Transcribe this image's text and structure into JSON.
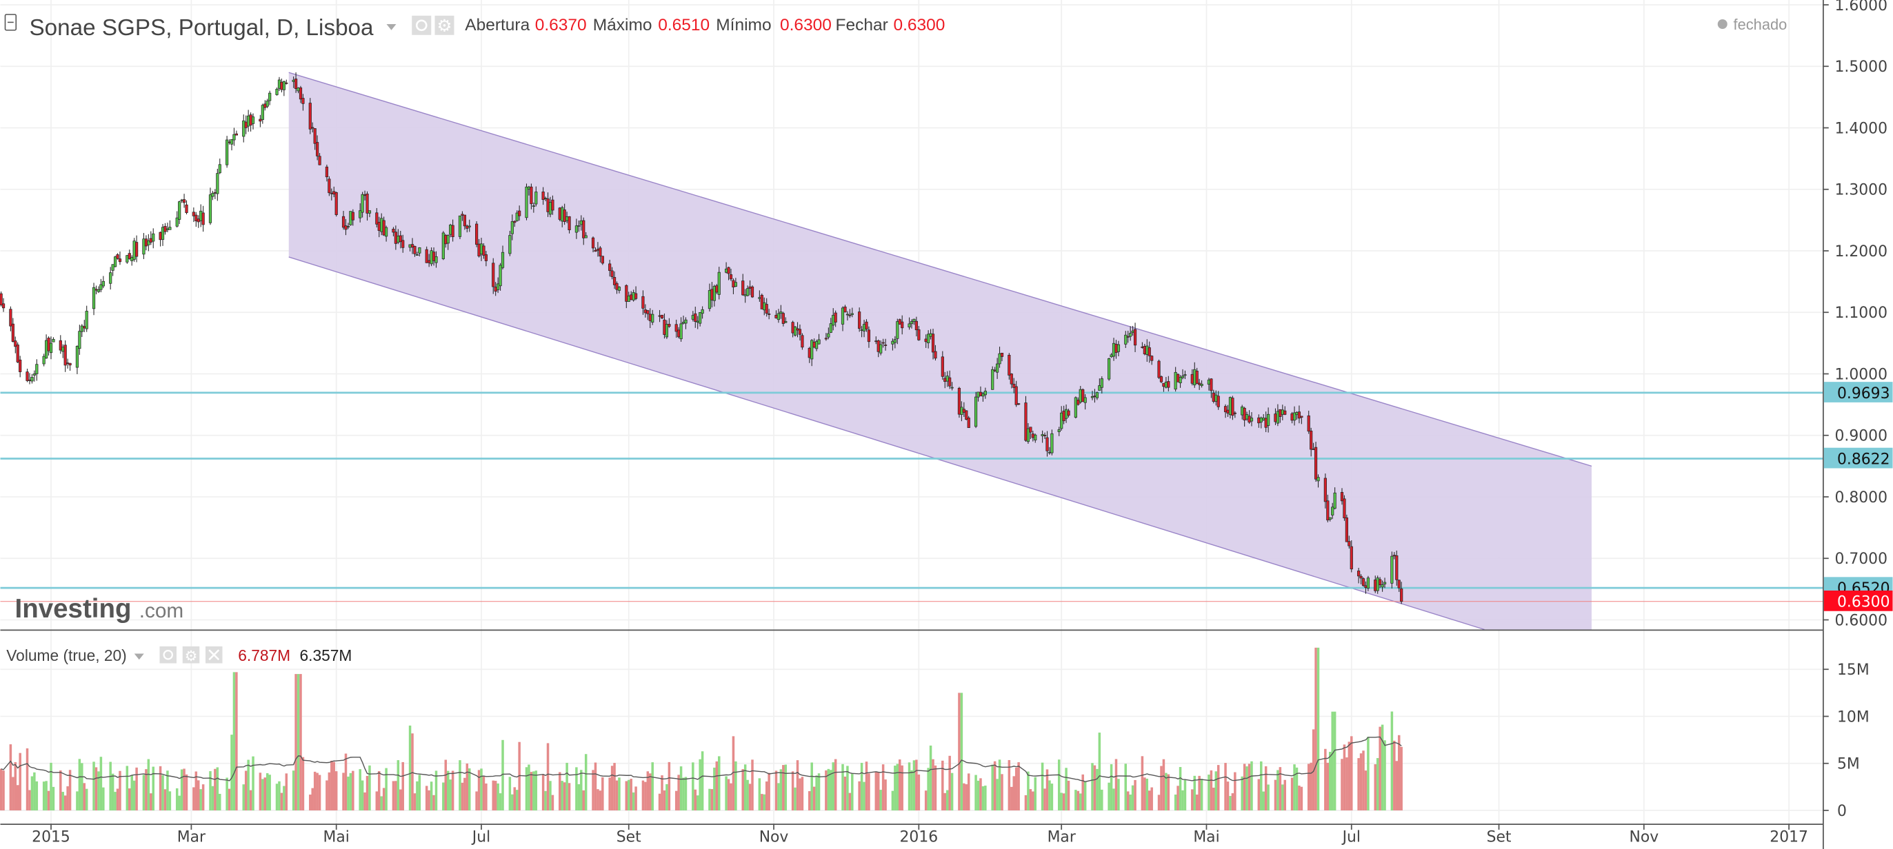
{
  "header": {
    "title": "Sonae SGPS, Portugal, D, Lisboa",
    "open_label": "Abertura",
    "open": "0.6370",
    "high_label": "Máximo",
    "high": "0.6510",
    "low_label": "Mínimo",
    "low": "0.6300",
    "close_label": "Fechar",
    "close": "0.6300",
    "market_status": "fechado"
  },
  "volume_legend": {
    "title": "Volume (true, 20)",
    "value1": "6.787M",
    "value2": "6.357M"
  },
  "logo": {
    "text": "Investing",
    "suffix": ".com"
  },
  "price_axis": [
    "1.6000",
    "1.5000",
    "1.4000",
    "1.3000",
    "1.2000",
    "1.1000",
    "1.0000",
    "0.9000",
    "0.8000",
    "0.7000",
    "0.6000"
  ],
  "price_markers": [
    {
      "label": "0.9693",
      "value": 0.9693,
      "color": "#7ecbd8"
    },
    {
      "label": "0.8622",
      "value": 0.8622,
      "color": "#7ecbd8"
    },
    {
      "label": "0.6520",
      "value": 0.652,
      "color": "#7ecbd8"
    },
    {
      "label": "0.6300",
      "value": 0.63,
      "color": "#ff0a1e"
    }
  ],
  "volume_axis": [
    "15M",
    "10M",
    "5M",
    "0"
  ],
  "time_axis": [
    {
      "label": "2015",
      "date": "2015-01-01"
    },
    {
      "label": "Mar",
      "date": "2015-03-01"
    },
    {
      "label": "Mai",
      "date": "2015-05-01"
    },
    {
      "label": "Jul",
      "date": "2015-07-01"
    },
    {
      "label": "Set",
      "date": "2015-09-01"
    },
    {
      "label": "Nov",
      "date": "2015-11-01"
    },
    {
      "label": "2016",
      "date": "2016-01-01"
    },
    {
      "label": "Mar",
      "date": "2016-03-01"
    },
    {
      "label": "Mai",
      "date": "2016-05-01"
    },
    {
      "label": "Jul",
      "date": "2016-07-01"
    },
    {
      "label": "Set",
      "date": "2016-09-01"
    },
    {
      "label": "Nov",
      "date": "2016-11-01"
    },
    {
      "label": "2017",
      "date": "2017-01-01"
    }
  ],
  "colors": {
    "up": "#55c24b",
    "down": "#d6202b",
    "vol_up": "#8fdc86",
    "vol_down": "#e58a8a",
    "channel": "#d8cdea",
    "channel_line": "#9a85c8"
  },
  "chart_data": {
    "type": "candlestick",
    "title": "Sonae SGPS, Portugal, D, Lisboa",
    "ylim": [
      0.58,
      1.6
    ],
    "close_path": [
      [
        "2014-12-11",
        1.127
      ],
      [
        "2014-12-21",
        0.98
      ],
      [
        "2014-12-31",
        1.05
      ],
      [
        "2015-01-10",
        1.02
      ],
      [
        "2015-01-18",
        1.12
      ],
      [
        "2015-01-30",
        1.19
      ],
      [
        "2015-02-15",
        1.22
      ],
      [
        "2015-02-25",
        1.28
      ],
      [
        "2015-03-07",
        1.25
      ],
      [
        "2015-03-17",
        1.39
      ],
      [
        "2015-03-30",
        1.42
      ],
      [
        "2015-04-11",
        1.49
      ],
      [
        "2015-04-19",
        1.41
      ],
      [
        "2015-04-27",
        1.31
      ],
      [
        "2015-05-04",
        1.245
      ],
      [
        "2015-05-12",
        1.28
      ],
      [
        "2015-05-27",
        1.21
      ],
      [
        "2015-06-09",
        1.19
      ],
      [
        "2015-06-24",
        1.255
      ],
      [
        "2015-07-07",
        1.148
      ],
      [
        "2015-07-19",
        1.295
      ],
      [
        "2015-08-01",
        1.265
      ],
      [
        "2015-08-16",
        1.225
      ],
      [
        "2015-08-24",
        1.157
      ],
      [
        "2015-08-29",
        1.137
      ],
      [
        "2015-09-11",
        1.088
      ],
      [
        "2015-09-21",
        1.069
      ],
      [
        "2015-10-01",
        1.1
      ],
      [
        "2015-10-11",
        1.167
      ],
      [
        "2015-10-21",
        1.127
      ],
      [
        "2015-11-06",
        1.088
      ],
      [
        "2015-11-16",
        1.039
      ],
      [
        "2015-12-01",
        1.108
      ],
      [
        "2015-12-16",
        1.039
      ],
      [
        "2015-12-26",
        1.088
      ],
      [
        "2016-01-06",
        1.055
      ],
      [
        "2016-01-21",
        0.92
      ],
      [
        "2016-02-05",
        1.03
      ],
      [
        "2016-02-15",
        0.9
      ],
      [
        "2016-02-25",
        0.886
      ],
      [
        "2016-03-06",
        0.96
      ],
      [
        "2016-03-17",
        0.98
      ],
      [
        "2016-03-24",
        1.049
      ],
      [
        "2016-04-03",
        1.06
      ],
      [
        "2016-04-11",
        0.984
      ],
      [
        "2016-04-26",
        1.0
      ],
      [
        "2016-05-06",
        0.96
      ],
      [
        "2016-05-22",
        0.918
      ],
      [
        "2016-06-01",
        0.94
      ],
      [
        "2016-06-13",
        0.91
      ],
      [
        "2016-06-16",
        0.843
      ],
      [
        "2016-06-21",
        0.765
      ],
      [
        "2016-06-26",
        0.82
      ],
      [
        "2016-07-01",
        0.686
      ],
      [
        "2016-07-11",
        0.651
      ],
      [
        "2016-07-19",
        0.696
      ],
      [
        "2016-07-22",
        0.63
      ]
    ],
    "channel": {
      "start": "2015-04-11",
      "end": "2016-10-10",
      "upper": [
        1.49,
        0.85
      ],
      "lower": [
        1.19,
        0.53
      ]
    },
    "volume_peaks_M": [
      [
        "2015-03-20",
        14.7
      ],
      [
        "2015-04-15",
        14.5
      ],
      [
        "2016-01-18",
        12.5
      ],
      [
        "2016-06-17",
        17.3
      ],
      [
        "2016-06-24",
        10.5
      ]
    ]
  }
}
